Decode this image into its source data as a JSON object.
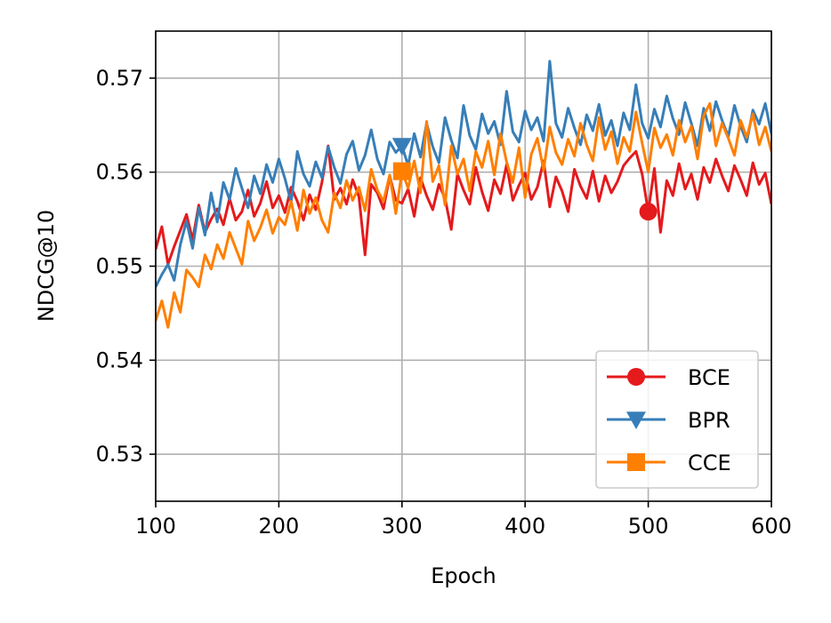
{
  "chart_data": {
    "type": "line",
    "xlabel": "Epoch",
    "ylabel": "NDCG@10",
    "xlim": [
      100,
      600
    ],
    "ylim": [
      0.525,
      0.575
    ],
    "xticks": [
      "100",
      "200",
      "300",
      "400",
      "500",
      "600"
    ],
    "yticks": [
      "0.53",
      "0.54",
      "0.55",
      "0.56",
      "0.57"
    ],
    "grid": true,
    "legend": "lower-right",
    "x": [
      100,
      105,
      110,
      115,
      120,
      125,
      130,
      135,
      140,
      145,
      150,
      155,
      160,
      165,
      170,
      175,
      180,
      185,
      190,
      195,
      200,
      205,
      210,
      215,
      220,
      225,
      230,
      235,
      240,
      245,
      250,
      255,
      260,
      265,
      270,
      275,
      280,
      285,
      290,
      295,
      300,
      305,
      310,
      315,
      320,
      325,
      330,
      335,
      340,
      345,
      350,
      355,
      360,
      365,
      370,
      375,
      380,
      385,
      390,
      395,
      400,
      405,
      410,
      415,
      420,
      425,
      430,
      435,
      440,
      445,
      450,
      455,
      460,
      465,
      470,
      475,
      480,
      485,
      490,
      495,
      500,
      505,
      510,
      515,
      520,
      525,
      530,
      535,
      540,
      545,
      550,
      555,
      560,
      565,
      570,
      575,
      580,
      585,
      590,
      595,
      600
    ],
    "series": [
      {
        "name": "BCE",
        "color": "#e41a1c",
        "marker": "circle",
        "marker_x": 500,
        "marker_y": 0.5558,
        "values": [
          0.5518,
          0.5542,
          0.5502,
          0.5521,
          0.5538,
          0.5555,
          0.5528,
          0.5565,
          0.5536,
          0.555,
          0.5561,
          0.5544,
          0.5572,
          0.5549,
          0.5558,
          0.5581,
          0.5553,
          0.5567,
          0.559,
          0.5562,
          0.5575,
          0.5557,
          0.5584,
          0.5569,
          0.5549,
          0.5576,
          0.556,
          0.5589,
          0.5628,
          0.5571,
          0.5583,
          0.5566,
          0.5592,
          0.5574,
          0.5512,
          0.5587,
          0.5578,
          0.5561,
          0.5596,
          0.557,
          0.5567,
          0.5582,
          0.5553,
          0.5594,
          0.5575,
          0.556,
          0.5587,
          0.5572,
          0.5539,
          0.5598,
          0.5581,
          0.5566,
          0.5605,
          0.5579,
          0.5559,
          0.5592,
          0.5577,
          0.5608,
          0.557,
          0.5586,
          0.5599,
          0.5571,
          0.5584,
          0.5612,
          0.5563,
          0.5595,
          0.558,
          0.5558,
          0.5603,
          0.5585,
          0.5572,
          0.5601,
          0.5569,
          0.5596,
          0.5578,
          0.559,
          0.5607,
          0.5615,
          0.5622,
          0.5598,
          0.5558,
          0.5604,
          0.5536,
          0.5591,
          0.5575,
          0.5609,
          0.5582,
          0.5598,
          0.5571,
          0.5605,
          0.5589,
          0.5614,
          0.5596,
          0.558,
          0.5607,
          0.5592,
          0.5575,
          0.561,
          0.5587,
          0.5599,
          0.5566
        ]
      },
      {
        "name": "BPR",
        "color": "#377eb8",
        "marker": "triangle-down",
        "marker_x": 300,
        "marker_y": 0.5628,
        "values": [
          0.5478,
          0.5491,
          0.5502,
          0.5485,
          0.5523,
          0.5548,
          0.5519,
          0.5562,
          0.5533,
          0.5578,
          0.5547,
          0.5589,
          0.5571,
          0.5604,
          0.5583,
          0.5562,
          0.5596,
          0.5577,
          0.5608,
          0.5589,
          0.5614,
          0.5593,
          0.5568,
          0.5622,
          0.5598,
          0.5585,
          0.5611,
          0.5594,
          0.5627,
          0.5605,
          0.5588,
          0.5619,
          0.5633,
          0.5602,
          0.5618,
          0.5645,
          0.5614,
          0.5598,
          0.5632,
          0.5621,
          0.5628,
          0.5607,
          0.5641,
          0.5616,
          0.5652,
          0.5627,
          0.561,
          0.5658,
          0.5634,
          0.5615,
          0.5671,
          0.5639,
          0.5624,
          0.5662,
          0.5641,
          0.5654,
          0.5629,
          0.5686,
          0.5643,
          0.5632,
          0.5665,
          0.5645,
          0.5658,
          0.5633,
          0.5718,
          0.5652,
          0.5637,
          0.5668,
          0.5647,
          0.5629,
          0.5661,
          0.5644,
          0.5672,
          0.5639,
          0.5655,
          0.5628,
          0.5663,
          0.5645,
          0.5693,
          0.5652,
          0.5636,
          0.5667,
          0.5648,
          0.5681,
          0.5657,
          0.564,
          0.5674,
          0.5652,
          0.5628,
          0.5668,
          0.5644,
          0.5675,
          0.5655,
          0.5638,
          0.5671,
          0.5649,
          0.5632,
          0.5666,
          0.5651,
          0.5673,
          0.5641
        ]
      },
      {
        "name": "CCE",
        "color": "#ff7f00",
        "marker": "square",
        "marker_x": 300,
        "marker_y": 0.5601,
        "values": [
          0.5442,
          0.5463,
          0.5435,
          0.5472,
          0.5451,
          0.5496,
          0.5488,
          0.5478,
          0.5512,
          0.5497,
          0.5523,
          0.5508,
          0.5536,
          0.5519,
          0.5502,
          0.5548,
          0.5527,
          0.5541,
          0.556,
          0.5535,
          0.5552,
          0.5544,
          0.5569,
          0.5538,
          0.5581,
          0.5556,
          0.5573,
          0.5549,
          0.5536,
          0.5578,
          0.5562,
          0.5591,
          0.557,
          0.5584,
          0.5559,
          0.5603,
          0.5581,
          0.5569,
          0.5597,
          0.5556,
          0.5601,
          0.5583,
          0.5612,
          0.5578,
          0.5654,
          0.559,
          0.5607,
          0.5565,
          0.5628,
          0.5598,
          0.5614,
          0.558,
          0.5622,
          0.5605,
          0.5633,
          0.5597,
          0.5641,
          0.5611,
          0.5589,
          0.5626,
          0.5573,
          0.5619,
          0.5636,
          0.5602,
          0.5648,
          0.5621,
          0.5608,
          0.5635,
          0.5617,
          0.5652,
          0.5629,
          0.5612,
          0.5658,
          0.5624,
          0.5643,
          0.5609,
          0.5637,
          0.5622,
          0.5664,
          0.5631,
          0.56,
          0.5647,
          0.5626,
          0.564,
          0.5618,
          0.5655,
          0.5632,
          0.5649,
          0.5614,
          0.566,
          0.5673,
          0.5628,
          0.5652,
          0.5636,
          0.5618,
          0.5655,
          0.5637,
          0.5662,
          0.5629,
          0.5648,
          0.5622
        ]
      }
    ]
  }
}
